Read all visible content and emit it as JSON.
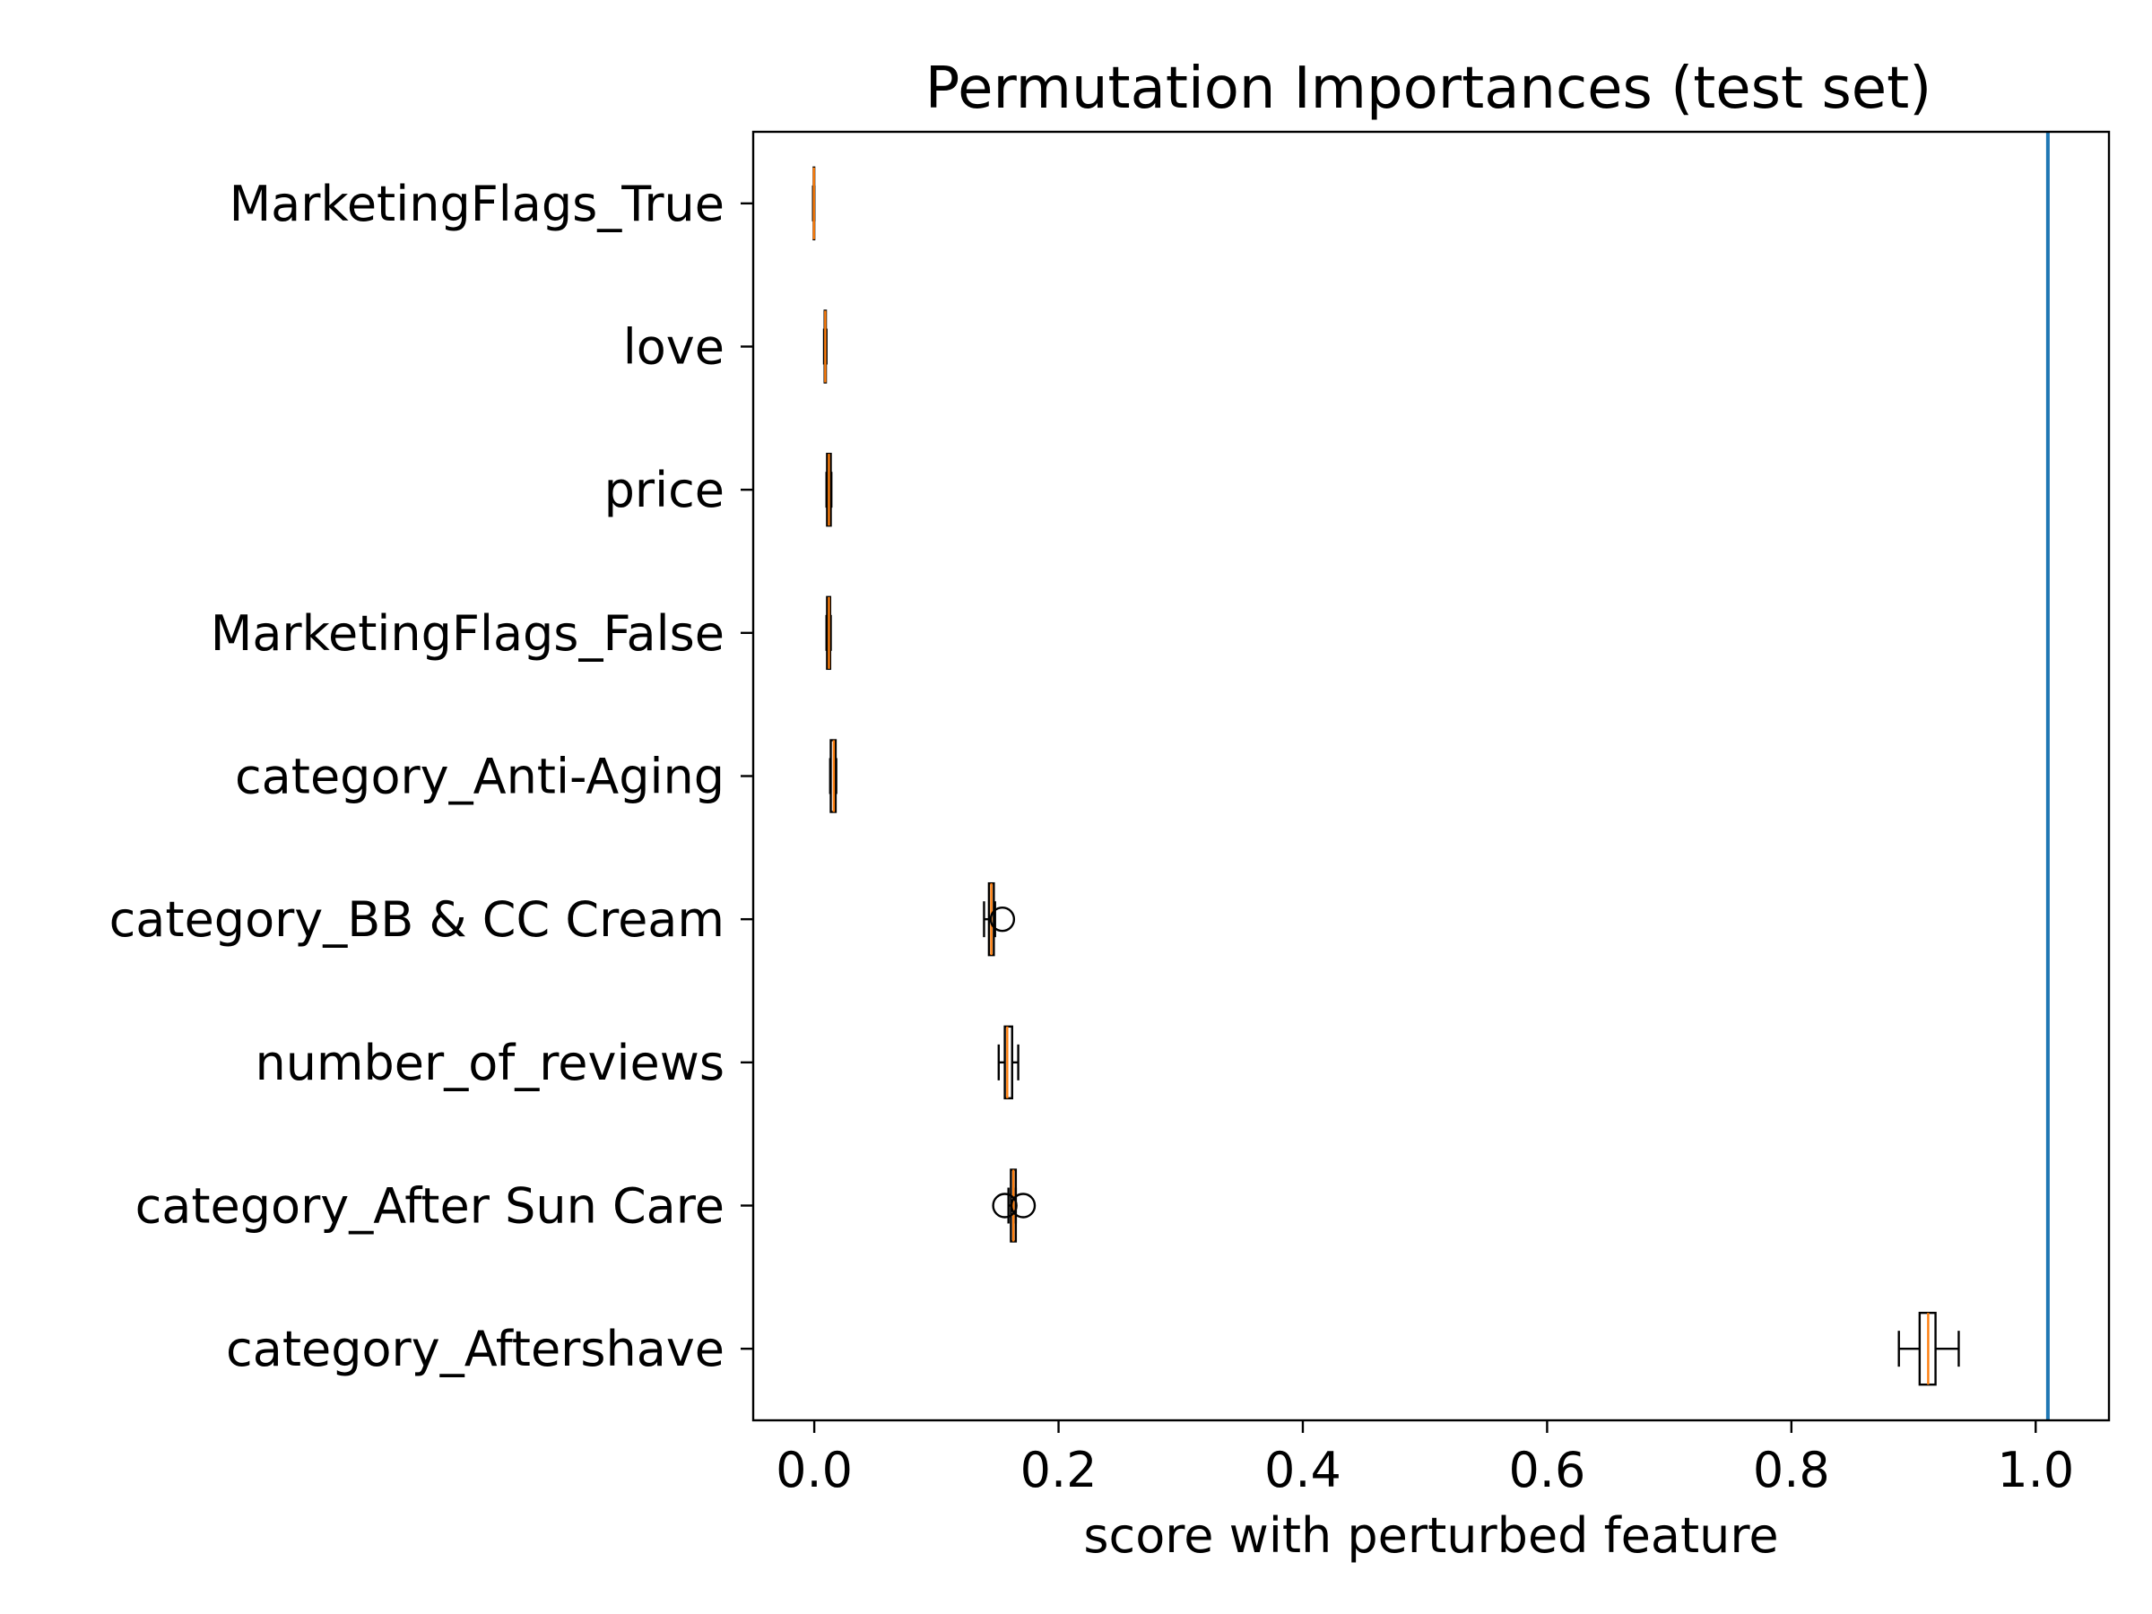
{
  "chart_data": {
    "type": "boxplot",
    "orientation": "horizontal",
    "title": "Permutation Importances (test set)",
    "xlabel": "score with perturbed feature",
    "ylabel": "",
    "xlim": [
      -0.05,
      1.06
    ],
    "xticks": [
      0.0,
      0.2,
      0.4,
      0.6,
      0.8,
      1.0
    ],
    "xtick_labels": [
      "0.0",
      "0.2",
      "0.4",
      "0.6",
      "0.8",
      "1.0"
    ],
    "grid": false,
    "baseline": {
      "value": 1.01,
      "color": "#1f77b4"
    },
    "colors": {
      "box": "#000000",
      "median": "#ff7f0e",
      "flier": "#000000"
    },
    "categories": [
      "MarketingFlags_True",
      "love",
      "price",
      "MarketingFlags_False",
      "category_Anti-Aging",
      "category_BB & CC Cream",
      "number_of_reviews",
      "category_After Sun Care",
      "category_Aftershave"
    ],
    "boxes": [
      {
        "label": "MarketingFlags_True",
        "whislo": -0.001,
        "q1": -0.0005,
        "med": -0.0003,
        "q3": 0.0,
        "whishi": 0.0,
        "fliers": []
      },
      {
        "label": "love",
        "whislo": 0.008,
        "q1": 0.0085,
        "med": 0.009,
        "q3": 0.0095,
        "whishi": 0.01,
        "fliers": []
      },
      {
        "label": "price",
        "whislo": 0.01,
        "q1": 0.0105,
        "med": 0.012,
        "q3": 0.0135,
        "whishi": 0.014,
        "fliers": []
      },
      {
        "label": "MarketingFlags_False",
        "whislo": 0.01,
        "q1": 0.0105,
        "med": 0.012,
        "q3": 0.013,
        "whishi": 0.0135,
        "fliers": []
      },
      {
        "label": "category_Anti-Aging",
        "whislo": 0.013,
        "q1": 0.0135,
        "med": 0.016,
        "q3": 0.0175,
        "whishi": 0.018,
        "fliers": []
      },
      {
        "label": "category_BB & CC Cream",
        "whislo": 0.139,
        "q1": 0.143,
        "med": 0.145,
        "q3": 0.147,
        "whishi": 0.148,
        "fliers": [
          0.154
        ]
      },
      {
        "label": "number_of_reviews",
        "whislo": 0.151,
        "q1": 0.156,
        "med": 0.158,
        "q3": 0.162,
        "whishi": 0.167,
        "fliers": []
      },
      {
        "label": "category_After Sun Care",
        "whislo": 0.159,
        "q1": 0.161,
        "med": 0.163,
        "q3": 0.165,
        "whishi": 0.165,
        "fliers": [
          0.156,
          0.171
        ]
      },
      {
        "label": "category_Aftershave",
        "whislo": 0.888,
        "q1": 0.905,
        "med": 0.912,
        "q3": 0.918,
        "whishi": 0.937,
        "fliers": []
      }
    ]
  }
}
